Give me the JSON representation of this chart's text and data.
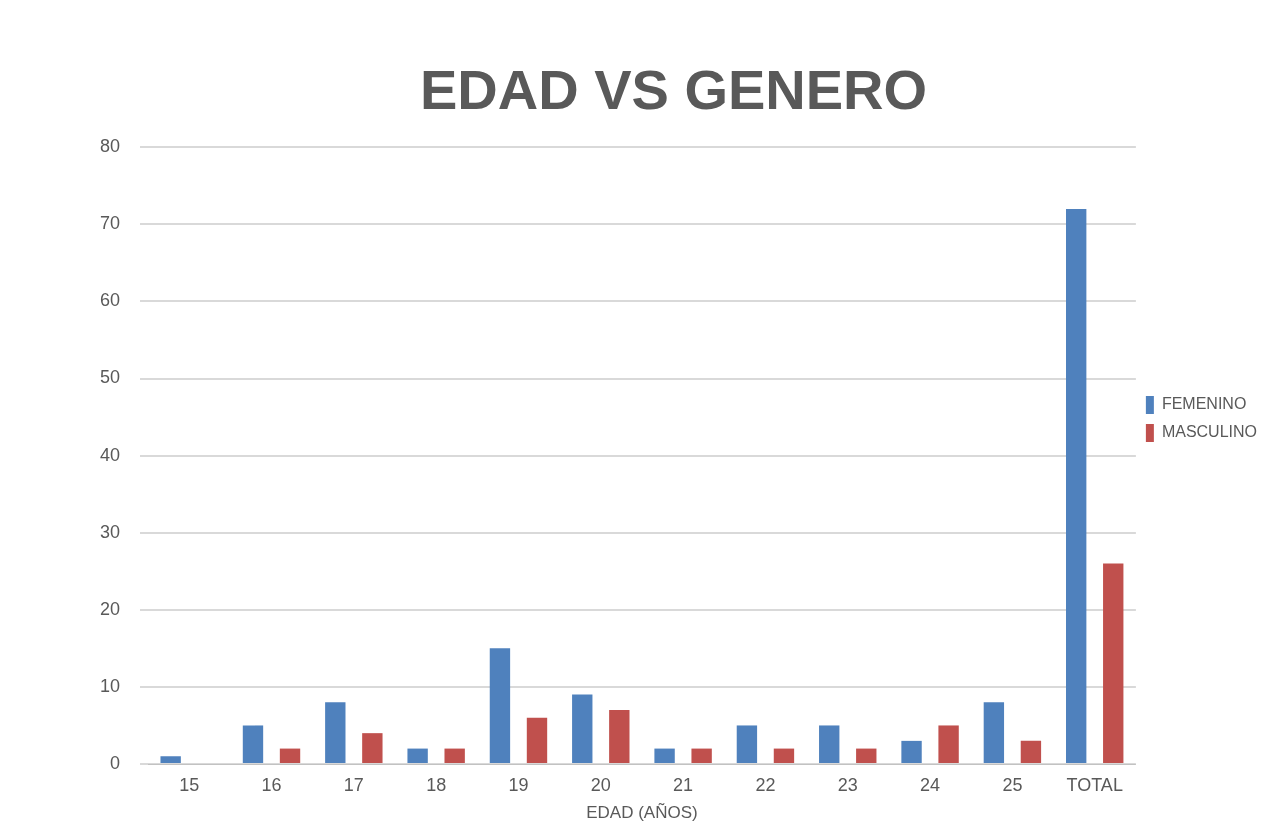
{
  "chart_data": {
    "type": "bar",
    "title": "EDAD VS GENERO",
    "xlabel": "EDAD (AÑOS)",
    "categories": [
      "15",
      "16",
      "17",
      "18",
      "19",
      "20",
      "21",
      "22",
      "23",
      "24",
      "25",
      "TOTAL"
    ],
    "series": [
      {
        "name": "FEMENINO",
        "color": "#4f81bd",
        "values": [
          1,
          5,
          8,
          2,
          15,
          9,
          2,
          5,
          5,
          3,
          8,
          72
        ]
      },
      {
        "name": "MASCULINO",
        "color": "#c0504d",
        "values": [
          0,
          2,
          4,
          2,
          6,
          7,
          2,
          2,
          2,
          5,
          3,
          26
        ]
      }
    ],
    "ylim": [
      0,
      80
    ],
    "yticks": [
      0,
      10,
      20,
      30,
      40,
      50,
      60,
      70,
      80
    ],
    "grid": "y",
    "legend": "right"
  }
}
